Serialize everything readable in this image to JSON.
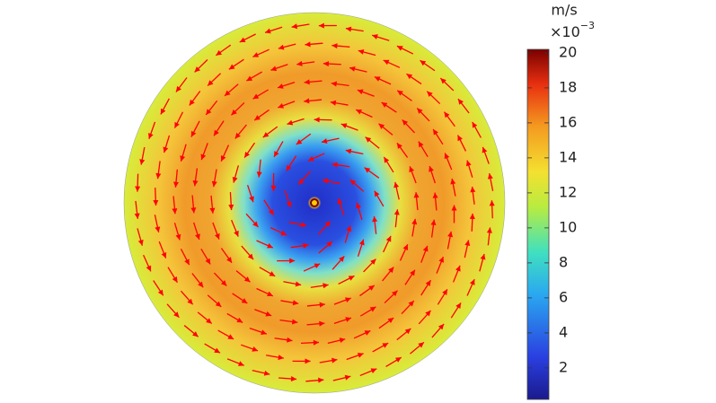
{
  "chart_data": {
    "type": "surface",
    "colorbar": {
      "unit": "m/s",
      "multiplier": "×10",
      "exponent": "−3",
      "ylim": [
        0.2,
        20.2
      ],
      "yticks": [
        2,
        4,
        6,
        8,
        10,
        12,
        14,
        16,
        18,
        20
      ]
    }
  }
}
